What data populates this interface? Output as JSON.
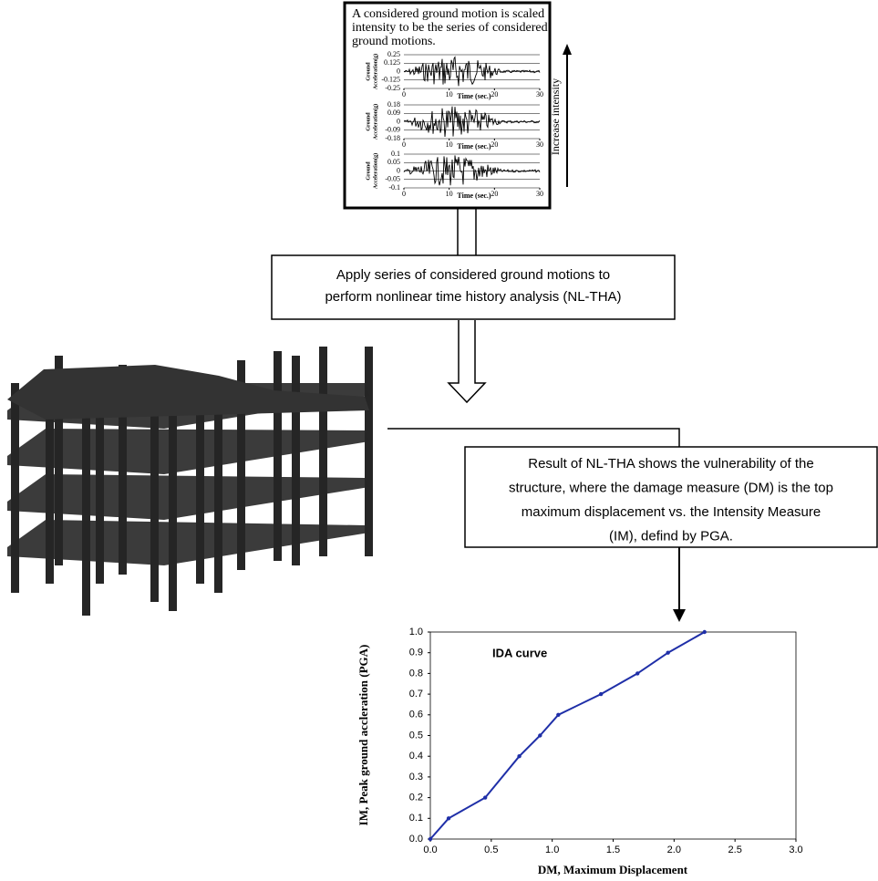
{
  "top_box": {
    "lines": [
      "A considered ground motion is scaled",
      "intensity to be the series of considered",
      "ground motions."
    ],
    "arrow_label": "Increase intensity",
    "motions": [
      {
        "ylabel": [
          "Ground",
          "Acceleration(g)"
        ],
        "xlabel": "Time (sec.)",
        "ylim": [
          -0.25,
          0.25
        ],
        "yticks": [
          0.25,
          0.125,
          0,
          -0.125,
          -0.25
        ],
        "xlim": [
          0,
          30
        ],
        "xticks": [
          0,
          10,
          20,
          30
        ]
      },
      {
        "ylabel": [
          "Ground",
          "Acceleration(g)"
        ],
        "xlabel": "Time (sec.)",
        "ylim": [
          -0.18,
          0.18
        ],
        "yticks": [
          0.18,
          0.09,
          0,
          -0.09,
          -0.18
        ],
        "xlim": [
          0,
          30
        ],
        "xticks": [
          0,
          10,
          20,
          30
        ]
      },
      {
        "ylabel": [
          "Ground",
          "Acceleration(g)"
        ],
        "xlabel": "Time (sec.)",
        "ylim": [
          -0.1,
          0.1
        ],
        "yticks": [
          0.1,
          0.05,
          0,
          -0.05,
          -0.1
        ],
        "xlim": [
          0,
          30
        ],
        "xticks": [
          0,
          10,
          20,
          30
        ]
      }
    ]
  },
  "step2": {
    "lines": [
      "Apply series of considered ground motions to",
      "perform nonlinear time history analysis (NL-THA)"
    ]
  },
  "step3": {
    "lines": [
      "Result of NL-THA shows the vulnerability of the",
      "structure, where the damage measure (DM) is the top",
      "maximum displacement vs. the Intensity Measure",
      "(IM), defind by PGA."
    ]
  },
  "chart_data": {
    "type": "line",
    "annotation": "IDA curve",
    "xlabel": "DM,  Maximum Displacement",
    "ylabel": "IM, Peak ground accleration (PGA)",
    "x": [
      0,
      0.15,
      0.45,
      0.73,
      0.9,
      1.05,
      1.4,
      1.7,
      1.95,
      2.25
    ],
    "series": [
      {
        "color": "#1f2fa8",
        "values": [
          0,
          0.1,
          0.2,
          0.4,
          0.5,
          0.6,
          0.7,
          0.8,
          0.9,
          1.0
        ]
      }
    ],
    "xlim": [
      0,
      3
    ],
    "ylim": [
      0,
      1
    ],
    "xticks": [
      {
        "value": 0,
        "label": "0.0"
      },
      {
        "value": 0.5,
        "label": "0.5"
      },
      {
        "value": 1,
        "label": "1.0"
      },
      {
        "value": 1.5,
        "label": "1.5"
      },
      {
        "value": 2,
        "label": "2.0"
      },
      {
        "value": 2.5,
        "label": "2.5"
      },
      {
        "value": 3,
        "label": "3.0"
      }
    ],
    "yticks": [
      {
        "value": 0,
        "label": "0.0"
      },
      {
        "value": 0.1,
        "label": "0.1"
      },
      {
        "value": 0.2,
        "label": "0.2"
      },
      {
        "value": 0.3,
        "label": "0.3"
      },
      {
        "value": 0.4,
        "label": "0.4"
      },
      {
        "value": 0.5,
        "label": "0.5"
      },
      {
        "value": 0.6,
        "label": "0.6"
      },
      {
        "value": 0.7,
        "label": "0.7"
      },
      {
        "value": 0.8,
        "label": "0.8"
      },
      {
        "value": 0.9,
        "label": "0.9"
      },
      {
        "value": 1,
        "label": "1.0"
      }
    ]
  }
}
